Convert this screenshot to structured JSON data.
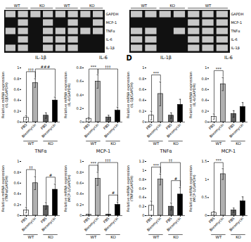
{
  "chart_data": [
    {
      "type": "heatmap",
      "categories": [
        null,
        null,
        null,
        null,
        null,
        null,
        null,
        null
      ],
      "rows": [
        "IL-1β",
        "IL-6",
        "TNFα",
        "MCP-1",
        "GAPDH"
      ],
      "cells": [
        [
          1,
          1,
          0,
          1,
          1,
          1,
          0,
          0
        ],
        [
          0,
          1,
          0,
          1,
          1,
          1,
          0,
          0
        ],
        [
          1,
          1,
          0,
          1,
          1,
          1,
          1,
          1
        ],
        [
          0,
          1,
          0,
          1,
          0,
          1,
          0,
          1
        ],
        [
          1,
          1,
          1,
          1,
          1,
          1,
          1,
          1
        ]
      ],
      "groups": [
        {
          "name": "WT",
          "size": 2
        },
        {
          "name": "KO",
          "size": 2
        },
        {
          "name": "WT",
          "size": 2
        },
        {
          "name": "KO",
          "size": 2
        }
      ],
      "colors": [
        "#111111",
        "#c8c8c8"
      ],
      "tick_labels": "y"
    },
    {
      "type": "heatmap",
      "categories": [
        null,
        null,
        null,
        null,
        null,
        null,
        null
      ],
      "rows": [
        "IL-1β",
        "IL-6",
        "TNFα",
        "MCP-1",
        "GAPDH"
      ],
      "cells": [
        [
          1,
          1,
          0,
          0,
          1,
          1,
          1
        ],
        [
          1,
          1,
          0,
          0,
          1,
          1,
          1
        ],
        [
          1,
          1,
          0,
          1,
          1,
          1,
          1
        ],
        [
          0,
          0,
          0,
          0,
          1,
          1,
          1
        ],
        [
          1,
          1,
          1,
          1,
          1,
          1,
          1
        ]
      ],
      "groups": [
        {
          "name": "WT",
          "size": 2
        },
        {
          "name": "KO",
          "size": 2
        },
        {
          "name": "WT",
          "size": 3
        }
      ],
      "colors": [
        "#111111",
        "#c8c8c8"
      ],
      "tick_labels": "y"
    },
    {
      "type": "bar",
      "title": "IL-1β",
      "ylabel": "Relative mRNA expression\n(IL-1β/GAPDH)",
      "categories": [
        "PBS",
        "Bleomycin",
        "PBS",
        "Bleomycin"
      ],
      "groups": [
        {
          "name": "WT",
          "size": 2
        },
        {
          "name": "KO",
          "size": 2
        }
      ],
      "values": [
        0.08,
        0.72,
        0.12,
        0.4
      ],
      "errors": [
        0.04,
        0.08,
        0.05,
        0.06
      ],
      "colors": [
        "white",
        "#b0b0b0",
        "#606060",
        "black"
      ],
      "ylim": [
        0,
        1.0
      ],
      "yticks": [
        0,
        0.2,
        0.4,
        0.6,
        0.8,
        1.0
      ],
      "brackets": [
        {
          "label": "†††",
          "from": 0,
          "to": 1,
          "level": 0
        },
        {
          "label": "###",
          "from": 1,
          "to": 3,
          "level": 1
        }
      ]
    },
    {
      "type": "bar",
      "title": "IL-6",
      "ylabel": "Relative mRNA expression\n(IL-6/GAPDH)",
      "categories": [
        "PBS",
        "Bleomycin",
        "PBS",
        "Bleomycin"
      ],
      "groups": [
        {
          "name": "WT",
          "size": 2
        },
        {
          "name": "KO",
          "size": 2
        }
      ],
      "values": [
        0.05,
        0.6,
        0.07,
        0.17
      ],
      "errors": [
        0.02,
        0.1,
        0.03,
        0.05
      ],
      "colors": [
        "white",
        "#b0b0b0",
        "#606060",
        "black"
      ],
      "ylim": [
        0,
        0.8
      ],
      "yticks": [
        0,
        0.2,
        0.4,
        0.6,
        0.8
      ],
      "brackets": [
        {
          "label": "***",
          "from": 0,
          "to": 1,
          "level": 0
        },
        {
          "label": "†††",
          "from": 1,
          "to": 3,
          "level": 1
        }
      ]
    },
    {
      "type": "bar",
      "title": "TNFα",
      "ylabel": "Relative mRNA expression\n(TNFα/GAPDH)",
      "categories": [
        "PBS",
        "Bleomycin",
        "PBS",
        "Bleomycin"
      ],
      "groups": [
        {
          "name": "WT",
          "size": 2
        },
        {
          "name": "KO",
          "size": 2
        }
      ],
      "values": [
        0.1,
        0.6,
        0.18,
        0.48
      ],
      "errors": [
        0.05,
        0.12,
        0.06,
        0.1
      ],
      "colors": [
        "white",
        "#b0b0b0",
        "#606060",
        "black"
      ],
      "ylim": [
        0,
        1.0
      ],
      "yticks": [
        0,
        0.2,
        0.4,
        0.6,
        0.8,
        1.0
      ],
      "brackets": [
        {
          "label": "††",
          "from": 0,
          "to": 1,
          "level": 0
        },
        {
          "label": "#",
          "from": 2,
          "to": 3,
          "level": 0
        }
      ]
    },
    {
      "type": "bar",
      "title": "MCP-1",
      "ylabel": "Relative mRNA expression\n(MCP-1/GAPDH)",
      "categories": [
        "PBS",
        "Bleomycin",
        "PBS",
        "Bleomycin"
      ],
      "groups": [
        {
          "name": "WT",
          "size": 2
        },
        {
          "name": "KO",
          "size": 2
        }
      ],
      "values": [
        0.02,
        0.68,
        0.02,
        0.2
      ],
      "errors": [
        0.01,
        0.12,
        0.01,
        0.05
      ],
      "colors": [
        "white",
        "#b0b0b0",
        "#606060",
        "black"
      ],
      "ylim": [
        0,
        1.0
      ],
      "yticks": [
        0,
        0.2,
        0.4,
        0.6,
        0.8,
        1.0
      ],
      "brackets": [
        {
          "label": "***",
          "from": 0,
          "to": 1,
          "level": 0
        },
        {
          "label": "†††",
          "from": 1,
          "to": 3,
          "level": 1
        },
        {
          "label": "#",
          "from": 2,
          "to": 3,
          "level": 0
        }
      ]
    },
    {
      "type": "bar",
      "title": "IL-1β",
      "ylabel": "Relative mRNA expression\n(IL-1β/GAPDH)",
      "annotations": [
        "D"
      ],
      "categories": [
        "PBS",
        "Bleomycin",
        "PBS",
        "Bleomycin"
      ],
      "groups": [
        {
          "name": "WT",
          "size": 2
        },
        {
          "name": "KO",
          "size": 2
        }
      ],
      "values": [
        0.12,
        0.52,
        0.12,
        0.32
      ],
      "errors": [
        0.08,
        0.22,
        0.05,
        0.1
      ],
      "colors": [
        "white",
        "#b0b0b0",
        "#606060",
        "black"
      ],
      "ylim": [
        0,
        1.0
      ],
      "yticks": [
        0,
        0.2,
        0.4,
        0.6,
        0.8,
        1.0
      ],
      "brackets": [
        {
          "label": "***",
          "from": 0,
          "to": 1,
          "level": 0
        }
      ]
    },
    {
      "type": "bar",
      "title": "IL-6",
      "ylabel": "Relative mRNA expression\n(IL-6/GAPDH)",
      "categories": [
        "PBS",
        "Bleomycin",
        "PBS",
        "Bleomycin"
      ],
      "groups": [
        {
          "name": "WT",
          "size": 2
        },
        {
          "name": "KO",
          "size": 2
        }
      ],
      "values": [
        0.1,
        0.7,
        0.15,
        0.28
      ],
      "errors": [
        0.05,
        0.12,
        0.06,
        0.08
      ],
      "colors": [
        "white",
        "#b0b0b0",
        "#606060",
        "black"
      ],
      "ylim": [
        0,
        1.0
      ],
      "yticks": [
        0,
        0.2,
        0.4,
        0.6,
        0.8,
        1.0
      ],
      "brackets": [
        {
          "label": "***",
          "from": 0,
          "to": 1,
          "level": 0
        }
      ]
    },
    {
      "type": "bar",
      "title": "TNFα",
      "ylabel": "Relative mRNA expression\n(TNFα/GAPDH)",
      "categories": [
        "PBS",
        "Bleomycin",
        "PBS",
        "Bleomycin"
      ],
      "groups": [
        {
          "name": "WT",
          "size": 2
        },
        {
          "name": "KO",
          "size": 2
        }
      ],
      "values": [
        0.22,
        0.8,
        0.2,
        0.47
      ],
      "errors": [
        0.1,
        0.12,
        0.08,
        0.15
      ],
      "colors": [
        "white",
        "#b0b0b0",
        "#606060",
        "black"
      ],
      "ylim": [
        0,
        1.2
      ],
      "yticks": [
        0,
        0.2,
        0.4,
        0.6,
        0.8,
        1.0,
        1.2
      ],
      "brackets": [
        {
          "label": "***",
          "from": 0,
          "to": 1,
          "level": 0
        },
        {
          "label": "††",
          "from": 1,
          "to": 3,
          "level": 1
        },
        {
          "label": "#",
          "from": 2,
          "to": 3,
          "level": 0
        }
      ]
    },
    {
      "type": "bar",
      "title": "MCP-1",
      "ylabel": "Relative mRNA expression\n(MCP-1/GAPDH)",
      "categories": [
        "PBS",
        "Bleomycin",
        "PBS",
        "Bleomycin"
      ],
      "groups": [
        {
          "name": "WT",
          "size": 2
        },
        {
          "name": "KO",
          "size": 2
        }
      ],
      "values": [
        0.08,
        1.15,
        0.15,
        0.4
      ],
      "errors": [
        0.04,
        0.15,
        0.06,
        0.12
      ],
      "colors": [
        "white",
        "#b0b0b0",
        "#606060",
        "black"
      ],
      "ylim": [
        0,
        1.5
      ],
      "yticks": [
        0,
        0.5,
        1.0,
        1.5
      ],
      "brackets": [
        {
          "label": "***",
          "from": 0,
          "to": 1,
          "level": 0
        }
      ]
    }
  ]
}
